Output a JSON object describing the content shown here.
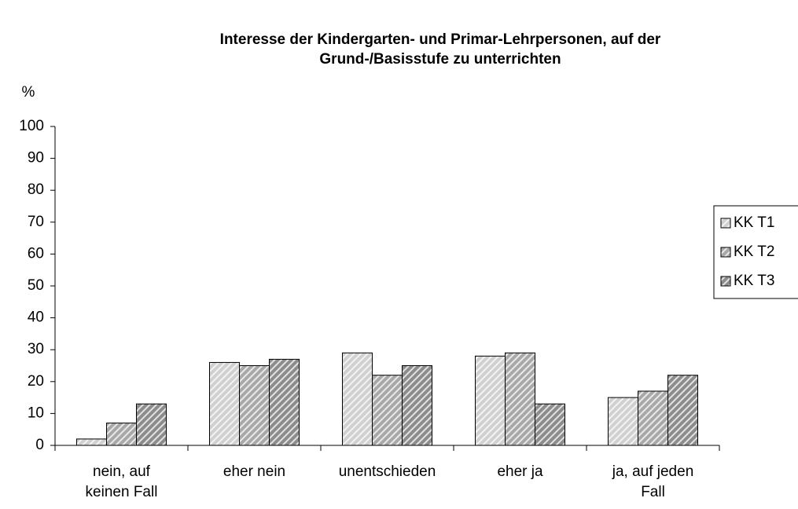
{
  "chart_data": {
    "type": "bar",
    "title": "Interesse der Kindergarten- und Primar-Lehrpersonen, auf der Grund-/Basisstufe zu unterrichten",
    "y_label": "%",
    "categories": [
      "nein, auf keinen Fall",
      "eher nein",
      "unentschieden",
      "eher ja",
      "ja, auf jeden Fall"
    ],
    "series": [
      {
        "name": "KK T1",
        "color": "#d0d0d0",
        "values": [
          2,
          26,
          29,
          28,
          15
        ]
      },
      {
        "name": "KK T2",
        "color": "#a8a8a8",
        "values": [
          7,
          25,
          22,
          29,
          17
        ]
      },
      {
        "name": "KK T3",
        "color": "#8c8c8c",
        "values": [
          13,
          27,
          25,
          13,
          22
        ]
      }
    ],
    "ylim": [
      0,
      100
    ],
    "yticks": [
      0,
      10,
      20,
      30,
      40,
      50,
      60,
      70,
      80,
      90,
      100
    ],
    "grid": false,
    "legend": "right"
  }
}
